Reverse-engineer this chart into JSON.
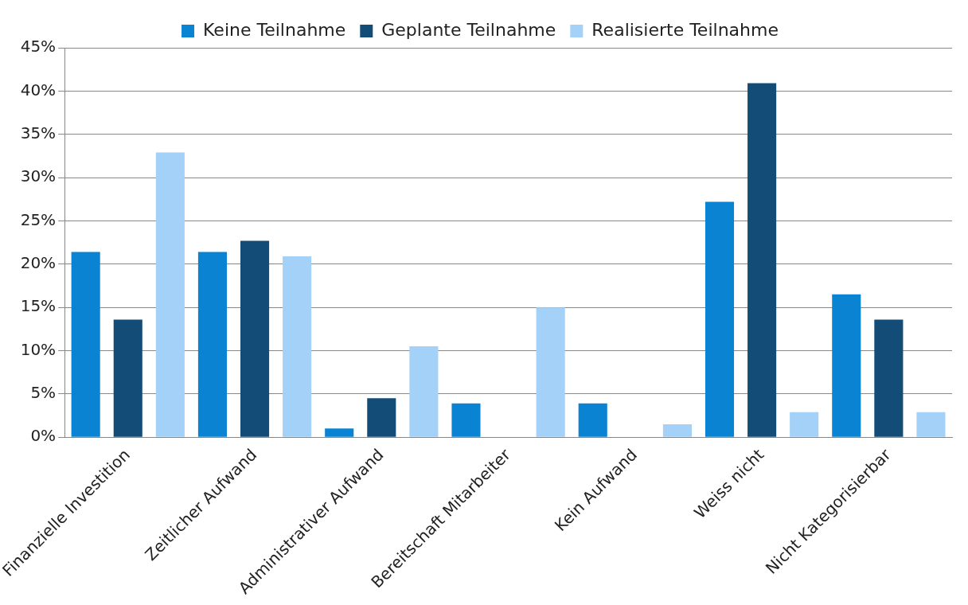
{
  "chart_data": {
    "type": "bar",
    "categories": [
      "Finanzielle Investition",
      "Zeitlicher Aufwand",
      "Administrativer Aufwand",
      "Bereitschaft Mitarbeiter",
      "Kein Aufwand",
      "Weiss nicht",
      "Nicht Kategorisierbar"
    ],
    "series": [
      {
        "name": "Keine Teilnahme",
        "color": "#0a83d2",
        "values": [
          21.4,
          21.4,
          1.0,
          3.9,
          3.9,
          27.2,
          16.5
        ]
      },
      {
        "name": "Geplante Teilnahme",
        "color": "#144c78",
        "values": [
          13.6,
          22.7,
          4.5,
          0,
          0,
          40.9,
          13.6
        ]
      },
      {
        "name": "Realisierte Teilnahme",
        "color": "#a3d1f7",
        "values": [
          32.9,
          20.9,
          10.5,
          15.0,
          1.5,
          2.9,
          2.9
        ]
      }
    ],
    "ylim": [
      0,
      45
    ],
    "yticks": [
      {
        "value": 0,
        "label": "0%"
      },
      {
        "value": 5,
        "label": "5%"
      },
      {
        "value": 10,
        "label": "10%"
      },
      {
        "value": 15,
        "label": "15%"
      },
      {
        "value": 20,
        "label": "20%"
      },
      {
        "value": 25,
        "label": "25%"
      },
      {
        "value": 30,
        "label": "30%"
      },
      {
        "value": 35,
        "label": "35%"
      },
      {
        "value": 40,
        "label": "40%"
      },
      {
        "value": 45,
        "label": "45%"
      }
    ],
    "grid": "y",
    "legend": "top"
  }
}
